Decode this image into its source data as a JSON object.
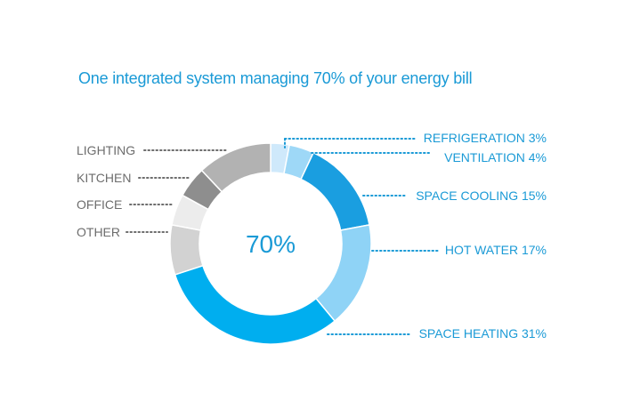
{
  "chart_data": {
    "type": "pie",
    "title": "One integrated system managing 70% of your energy bill",
    "center_label": "70%",
    "slices": [
      {
        "label": "REFRIGERATION",
        "value": 3,
        "display": "REFRIGERATION 3%",
        "color": "#cfe9fb",
        "group": "managed"
      },
      {
        "label": "VENTILATION",
        "value": 4,
        "display": "VENTILATION 4%",
        "color": "#9ed8f7",
        "group": "managed"
      },
      {
        "label": "SPACE COOLING",
        "value": 15,
        "display": "SPACE COOLING 15%",
        "color": "#1a9ee0",
        "group": "managed"
      },
      {
        "label": "HOT WATER",
        "value": 17,
        "display": "HOT WATER 17%",
        "color": "#8fd3f6",
        "group": "managed"
      },
      {
        "label": "SPACE HEATING",
        "value": 31,
        "display": "SPACE HEATING 31%",
        "color": "#00aeef",
        "group": "managed"
      },
      {
        "label": "OTHER",
        "value": 8,
        "display": "OTHER",
        "color": "#d2d2d2",
        "group": "unmanaged"
      },
      {
        "label": "OFFICE",
        "value": 5,
        "display": "OFFICE",
        "color": "#ececec",
        "group": "unmanaged"
      },
      {
        "label": "KITCHEN",
        "value": 5,
        "display": "KITCHEN",
        "color": "#8e8e8e",
        "group": "unmanaged"
      },
      {
        "label": "LIGHTING",
        "value": 12,
        "display": "LIGHTING",
        "color": "#b2b2b2",
        "group": "unmanaged"
      }
    ],
    "colors": {
      "managed_text": "#1a9ad6",
      "unmanaged_text": "#6d6d6d",
      "title": "#1a9ad6"
    }
  }
}
